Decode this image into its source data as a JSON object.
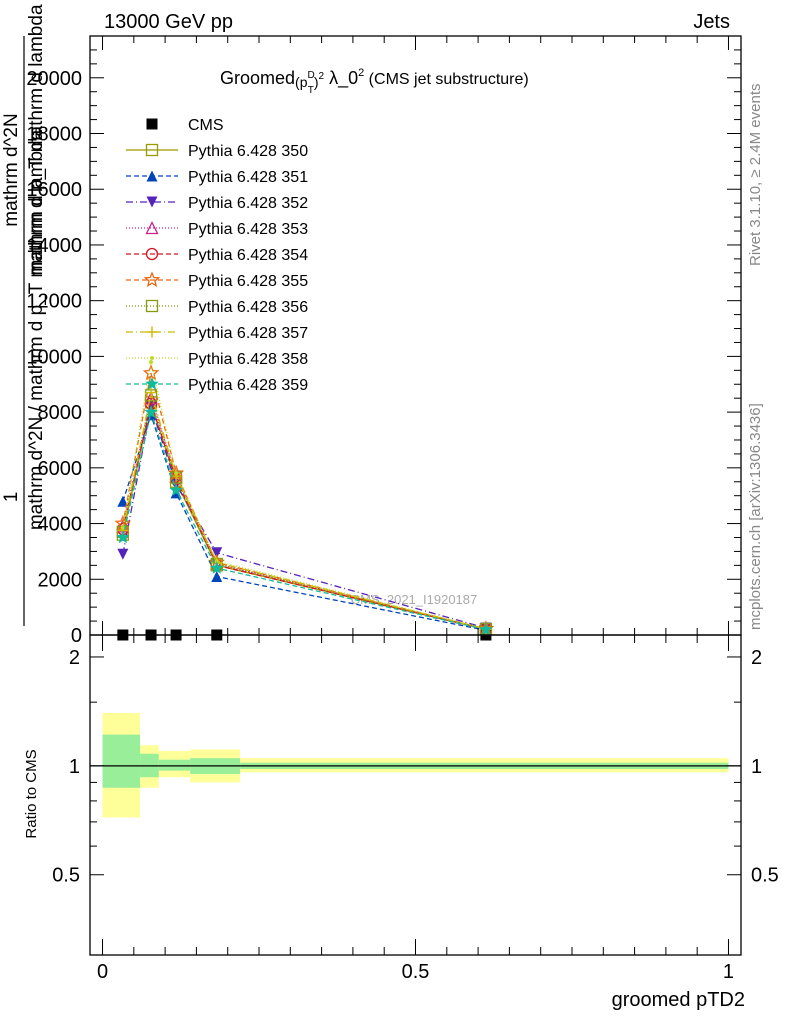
{
  "header": {
    "energy_label": "13000 GeV pp",
    "category_label": "Jets",
    "plot_title": "Groomed (p_T^D)^2 λ_0^2 (CMS jet substructure)",
    "watermark": "CMS_2021_I1920187",
    "right_label_top": "Rivet 3.1.10, ≥ 2.4M events",
    "right_label_bottom": "mcplots.cern.ch [arXiv:1306.3436]"
  },
  "main_y_label": {
    "numerator": "1",
    "denominator": "mathrm d^2N / mathrm d p_T mathrm d lambda",
    "numerator_overlay": "mathrm d^2N",
    "denominator_overlay": "mathrm d p_T mathrm d lambda"
  },
  "ratio_y_label": "Ratio to CMS",
  "x_label": "groomed pTD2",
  "chart_data": [
    {
      "type": "line",
      "panel": "main",
      "xlim": [
        -0.02,
        1.02
      ],
      "ylim": [
        0,
        21500
      ],
      "yticks": [
        0,
        2000,
        4000,
        6000,
        8000,
        10000,
        12000,
        14000,
        16000,
        18000,
        20000
      ],
      "ytick_labels": [
        "0",
        "2000",
        "4000",
        "6000",
        "8000",
        "10000",
        "12000",
        "14000",
        "16000",
        "18000",
        "20000"
      ],
      "x": [
        0.0325,
        0.0775,
        0.1175,
        0.1825,
        0.6125
      ],
      "legend_position": "top-left",
      "series": [
        {
          "name": "CMS",
          "style": "data",
          "color": "#000000",
          "marker": "square-filled",
          "values": [
            0,
            0,
            0,
            0,
            0
          ]
        },
        {
          "name": "Pythia 6.428 350",
          "color": "#999900",
          "dash": "",
          "marker": "square-open",
          "values": [
            3600,
            8350,
            5500,
            2500,
            200
          ]
        },
        {
          "name": "Pythia 6.428 351",
          "color": "#0044bb",
          "dash": "5,3",
          "marker": "triangle-up-filled",
          "values": [
            4800,
            7900,
            5100,
            2100,
            170
          ]
        },
        {
          "name": "Pythia 6.428 352",
          "color": "#5522bb",
          "dash": "7,3,1,3",
          "marker": "triangle-down-filled",
          "values": [
            2900,
            8200,
            5400,
            2950,
            250
          ]
        },
        {
          "name": "Pythia 6.428 353",
          "color": "#cc2288",
          "dash": "1,2",
          "marker": "triangle-up-open",
          "values": [
            3900,
            8500,
            5700,
            2550,
            210
          ]
        },
        {
          "name": "Pythia 6.428 354",
          "color": "#dd1122",
          "dash": "5,3",
          "marker": "circle-open",
          "values": [
            3800,
            8300,
            5600,
            2500,
            205
          ]
        },
        {
          "name": "Pythia 6.428 355",
          "color": "#ee6611",
          "dash": "5,3",
          "marker": "star-open",
          "values": [
            4000,
            9400,
            5800,
            2600,
            220
          ]
        },
        {
          "name": "Pythia 6.428 356",
          "color": "#889911",
          "dash": "1,2",
          "marker": "square-open",
          "values": [
            3700,
            8600,
            5650,
            2550,
            215
          ]
        },
        {
          "name": "Pythia 6.428 357",
          "color": "#ccbb00",
          "dash": "7,3,1,3",
          "marker": "cross",
          "values": [
            3750,
            8700,
            5700,
            2600,
            210
          ]
        },
        {
          "name": "Pythia 6.428 358",
          "color": "#bbdd22",
          "dash": "1,2",
          "marker": "dot",
          "values": [
            3850,
            9800,
            5800,
            2650,
            225
          ]
        },
        {
          "name": "Pythia 6.428 359",
          "color": "#11bb99",
          "dash": "5,3",
          "marker": "star-filled",
          "values": [
            3500,
            8000,
            5200,
            2400,
            195
          ]
        }
      ]
    },
    {
      "type": "area",
      "panel": "ratio",
      "xlim": [
        -0.02,
        1.02
      ],
      "ylim": [
        0.3,
        2.3
      ],
      "yticks": [
        0.5,
        1,
        2
      ],
      "ytick_labels": [
        "0.5",
        "1",
        "2"
      ],
      "xticks": [
        0,
        0.5,
        1
      ],
      "xtick_labels": [
        "0",
        "0.5",
        "1"
      ],
      "reference_line": 1,
      "bins": [
        {
          "x0": 0.0,
          "x1": 0.06,
          "inner": [
            0.87,
            1.22
          ],
          "outer": [
            0.72,
            1.4
          ]
        },
        {
          "x0": 0.06,
          "x1": 0.09,
          "inner": [
            0.93,
            1.08
          ],
          "outer": [
            0.87,
            1.14
          ]
        },
        {
          "x0": 0.09,
          "x1": 0.14,
          "inner": [
            0.97,
            1.04
          ],
          "outer": [
            0.93,
            1.1
          ]
        },
        {
          "x0": 0.14,
          "x1": 0.22,
          "inner": [
            0.95,
            1.05
          ],
          "outer": [
            0.9,
            1.11
          ]
        },
        {
          "x0": 0.22,
          "x1": 1.0,
          "inner": [
            0.98,
            1.02
          ],
          "outer": [
            0.96,
            1.05
          ]
        }
      ],
      "band_colors": {
        "inner": "#99ee99",
        "outer": "#ffff99"
      }
    }
  ]
}
